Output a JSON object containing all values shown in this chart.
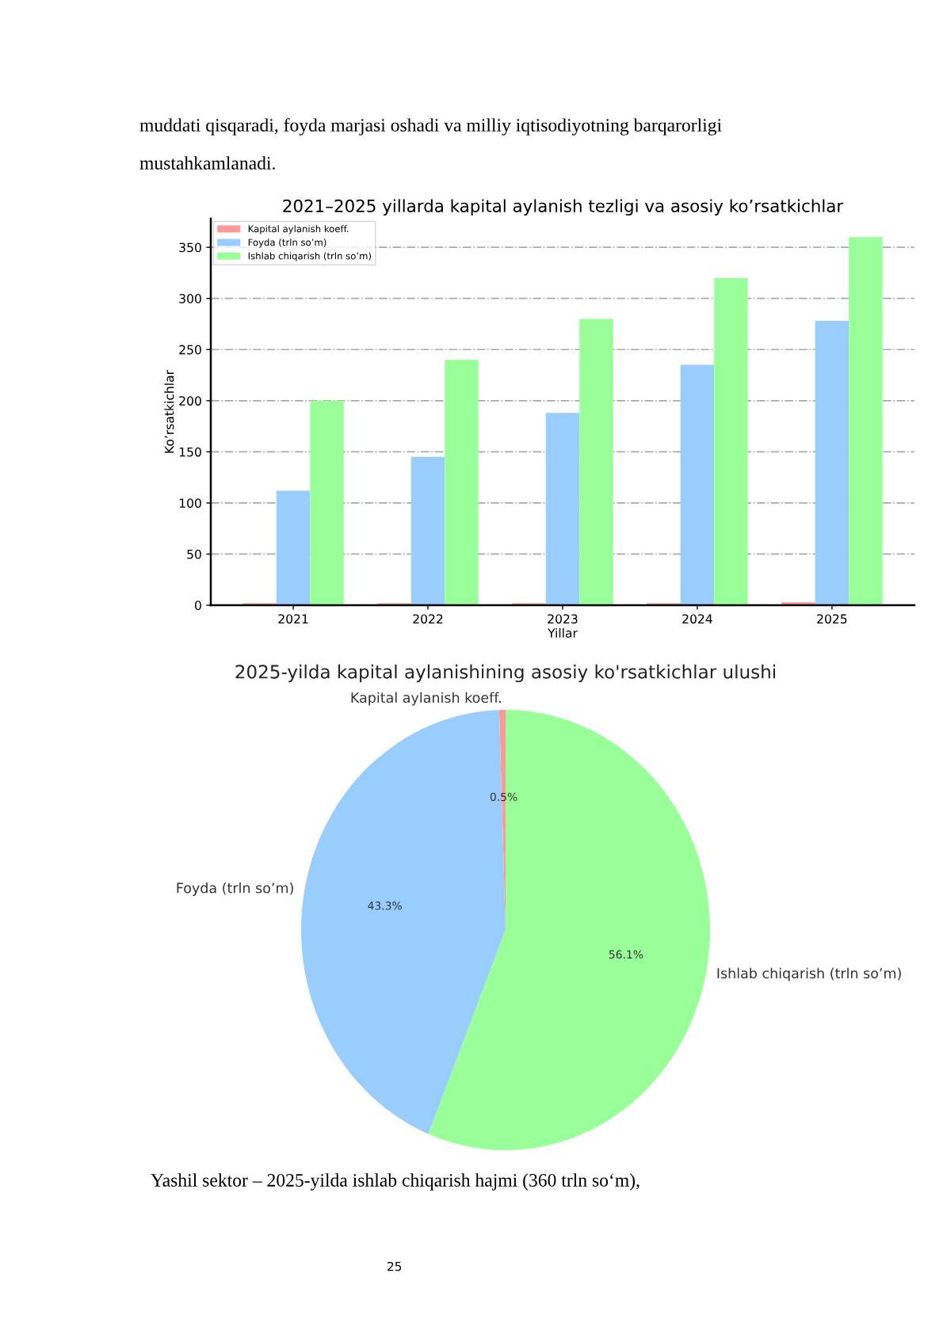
{
  "chart_data": [
    {
      "type": "bar",
      "title": "2021–2025 yillarda kapital aylanish tezligi va asosiy ko’rsatkichlar",
      "xlabel": "Yillar",
      "ylabel": "Ko’rsatkichlar",
      "categories": [
        "2021",
        "2022",
        "2023",
        "2024",
        "2025"
      ],
      "series": [
        {
          "name": "Kapital aylanish koeff.",
          "color": "#ff9999",
          "values": [
            2,
            2,
            2,
            2,
            3
          ]
        },
        {
          "name": "Foyda (trln so’m)",
          "color": "#99ccff",
          "values": [
            112,
            145,
            188,
            235,
            278
          ]
        },
        {
          "name": "Ishlab chiqarish (trln so’m)",
          "color": "#99ff99",
          "values": [
            200,
            240,
            280,
            320,
            360
          ]
        }
      ],
      "ylim": [
        0,
        378
      ],
      "yticks": [
        0,
        50,
        100,
        150,
        200,
        250,
        300,
        350
      ],
      "grid": "y",
      "legend": "top left",
      "annotations": [
        "muddati qisqaradi, foyda marjasi oshadi va milliy iqtisodiyotning barqarorligi",
        "mustahkamlanadi."
      ]
    },
    {
      "type": "pie",
      "title": "2025-yilda kapital aylanishining asosiy ko'rsatkichlar ulushi",
      "categories": [
        "Kapital aylanish koeff.",
        "Foyda (trln so’m)",
        "Ishlab chiqarish (trln so’m)"
      ],
      "values": [
        0.5,
        43.3,
        56.1
      ],
      "colors": [
        "#ff9999",
        "#99ccff",
        "#99ff99"
      ],
      "value_labels": [
        "0.5%",
        "43.3%",
        "56.1%"
      ],
      "annotations": [
        "Yashil sektor – 2025-yilda ishlab chiqarish hajmi (360 trln so‘m),",
        "25"
      ]
    }
  ]
}
